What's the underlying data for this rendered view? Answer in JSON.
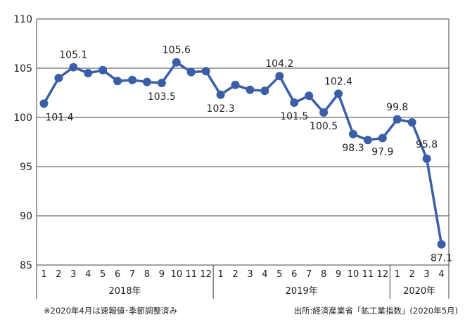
{
  "chart_data": {
    "type": "line",
    "x": [
      "1",
      "2",
      "3",
      "4",
      "5",
      "6",
      "7",
      "8",
      "9",
      "10",
      "11",
      "12",
      "1",
      "2",
      "3",
      "4",
      "5",
      "6",
      "7",
      "8",
      "9",
      "10",
      "11",
      "12",
      "1",
      "2",
      "3",
      "4"
    ],
    "year_groups": [
      {
        "label": "2018年",
        "count": 12
      },
      {
        "label": "2019年",
        "count": 12
      },
      {
        "label": "2020年",
        "count": 4
      }
    ],
    "series": [
      {
        "values": [
          101.4,
          104.0,
          105.1,
          104.5,
          104.8,
          103.7,
          103.8,
          103.6,
          103.5,
          105.6,
          104.6,
          104.7,
          102.3,
          103.3,
          102.8,
          102.7,
          104.2,
          101.5,
          102.2,
          100.5,
          102.4,
          98.3,
          97.7,
          97.9,
          99.8,
          99.5,
          95.8,
          87.1
        ],
        "color": "#3a5ea8"
      }
    ],
    "data_labels": [
      {
        "index": 0,
        "text": "101.4",
        "pos": "below"
      },
      {
        "index": 2,
        "text": "105.1",
        "pos": "above"
      },
      {
        "index": 8,
        "text": "103.5",
        "pos": "below"
      },
      {
        "index": 9,
        "text": "105.6",
        "pos": "above"
      },
      {
        "index": 12,
        "text": "102.3",
        "pos": "below"
      },
      {
        "index": 16,
        "text": "104.2",
        "pos": "above"
      },
      {
        "index": 17,
        "text": "101.5",
        "pos": "below"
      },
      {
        "index": 19,
        "text": "100.5",
        "pos": "below"
      },
      {
        "index": 20,
        "text": "102.4",
        "pos": "above"
      },
      {
        "index": 21,
        "text": "98.3",
        "pos": "below"
      },
      {
        "index": 23,
        "text": "97.9",
        "pos": "below"
      },
      {
        "index": 24,
        "text": "99.8",
        "pos": "above"
      },
      {
        "index": 26,
        "text": "95.8",
        "pos": "above-right"
      },
      {
        "index": 27,
        "text": "87.1",
        "pos": "below"
      }
    ],
    "ylim": [
      85,
      110
    ],
    "yticks": [
      85,
      90,
      95,
      100,
      105,
      110
    ],
    "grid": true
  },
  "footnote": "※2020年4月は速報値･季節調整済み",
  "source": "出所:経済産業省「鉱工業指数」(2020年5月)"
}
